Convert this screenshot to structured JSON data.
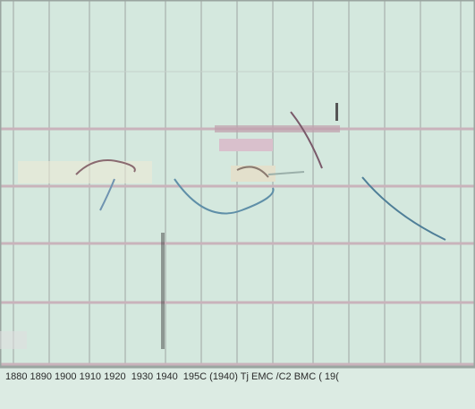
{
  "footer_text": "1880 1890 1900 1910 1920  1930 1940  195C (1940) Tj EMC /C2 BMC ( 19("
}
